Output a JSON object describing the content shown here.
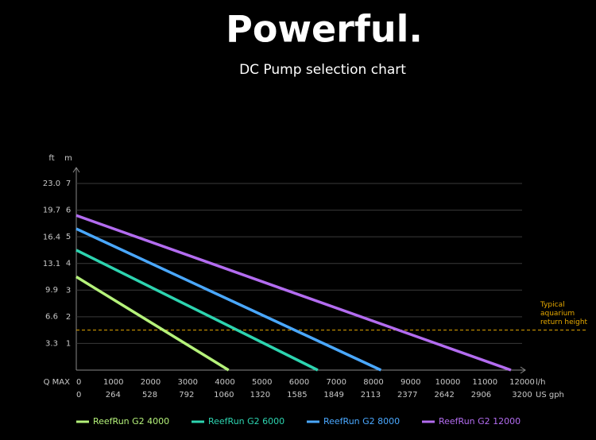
{
  "chart_data": {
    "type": "line",
    "title": "Powerful.",
    "subtitle": "DC Pump selection chart",
    "x_label": "l/h",
    "x2_label": "US gph",
    "x_row_label": "Q MAX",
    "y_label": "m",
    "y2_label": "ft",
    "xlim": [
      0,
      12000
    ],
    "xticks": [
      0,
      1000,
      2000,
      3000,
      4000,
      5000,
      6000,
      7000,
      8000,
      9000,
      10000,
      11000,
      12000
    ],
    "x2lim": [
      0,
      3200
    ],
    "x2ticks": [
      0,
      264,
      528,
      792,
      1060,
      1320,
      1585,
      1849,
      2113,
      2377,
      2642,
      2906,
      3200
    ],
    "ylim": [
      0,
      7
    ],
    "yticks": [
      1,
      2,
      3,
      4,
      5,
      6,
      7
    ],
    "y2lim": [
      0,
      23
    ],
    "y2ticks": [
      3.3,
      6.6,
      9.9,
      13.1,
      16.4,
      19.7,
      {
        "value": 23,
        "label": "23.0"
      }
    ],
    "grid": true,
    "reference": {
      "value": 1.5,
      "color": "#e5a800",
      "lines": [
        "Typical",
        "aquarium",
        "return height"
      ]
    },
    "series": [
      {
        "name": "ReefRun G2 4000",
        "color": "#b5f27a",
        "x": [
          0,
          4100
        ],
        "values": [
          3.5,
          0
        ]
      },
      {
        "name": "ReefRun G2 6000",
        "color": "#2dd4b0",
        "x": [
          0,
          6500
        ],
        "values": [
          4.5,
          0
        ]
      },
      {
        "name": "ReefRun G2 8000",
        "color": "#4aa8ff",
        "x": [
          0,
          8200
        ],
        "values": [
          5.3,
          0
        ]
      },
      {
        "name": "ReefRun G2 12000",
        "color": "#b36cf0",
        "x": [
          0,
          11700
        ],
        "values": [
          5.8,
          0
        ]
      }
    ]
  }
}
